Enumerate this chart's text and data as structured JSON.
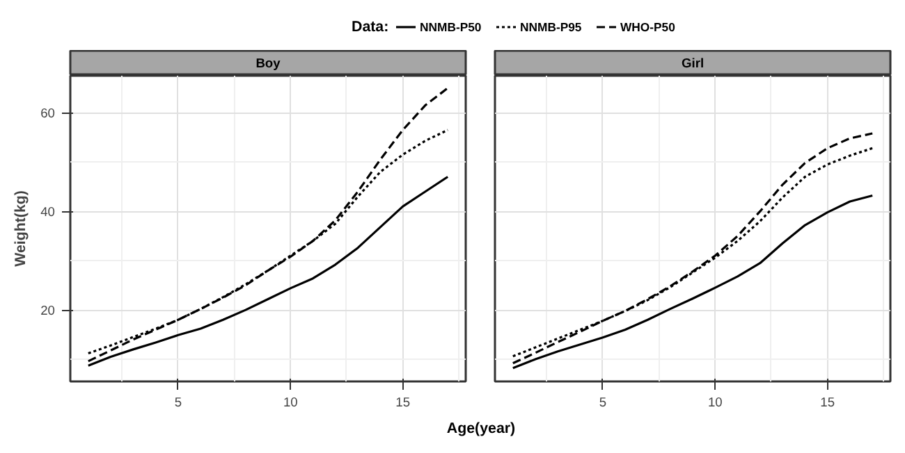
{
  "chart_data": [
    {
      "type": "line",
      "title": "Boy",
      "xlabel": "Age(year)",
      "ylabel": "Weight(kg)",
      "legend_title": "Data:",
      "legend": "top",
      "grid": true,
      "tick_labels": "xy",
      "x": [
        1,
        2,
        3,
        4,
        5,
        6,
        7,
        8,
        9,
        10,
        11,
        12,
        13,
        14,
        15,
        16,
        17
      ],
      "xlim": [
        0.2,
        17.8
      ],
      "ylim": [
        5.5,
        67.5
      ],
      "xticks": [
        5,
        10,
        15
      ],
      "yticks": [
        20,
        40,
        60
      ],
      "series": [
        {
          "name": "NNMB-P50",
          "color": "#000000",
          "line_style": "solid",
          "values": [
            8.7,
            10.5,
            12,
            13.4,
            14.9,
            16.2,
            18,
            20,
            22.2,
            24.4,
            26.4,
            29.2,
            32.6,
            36.8,
            41,
            44,
            47
          ]
        },
        {
          "name": "NNMB-P95",
          "color": "#000000",
          "line_style": "dotted",
          "values": [
            11.2,
            12.8,
            14.5,
            16.2,
            18,
            20.2,
            22.6,
            25.2,
            28,
            31,
            34,
            37.5,
            43,
            48,
            51.5,
            54.3,
            56.5
          ]
        },
        {
          "name": "WHO-P50",
          "color": "#000000",
          "line_style": "dashed",
          "values": [
            9.6,
            11.8,
            14,
            16,
            18,
            20.2,
            22.5,
            25,
            28,
            30.8,
            34,
            38.2,
            44,
            50.5,
            56.5,
            61.5,
            65
          ]
        }
      ]
    },
    {
      "type": "line",
      "title": "Girl",
      "grid": true,
      "tick_labels": "x",
      "x": [
        1,
        2,
        3,
        4,
        5,
        6,
        7,
        8,
        9,
        10,
        11,
        12,
        13,
        14,
        15,
        16,
        17
      ],
      "xlim": [
        0.2,
        17.8
      ],
      "ylim": [
        5.5,
        67.5
      ],
      "xticks": [
        5,
        10,
        15
      ],
      "yticks": [
        20,
        40,
        60
      ],
      "series": [
        {
          "color": "#000000",
          "line_style": "solid",
          "values": [
            8.2,
            10,
            11.6,
            13,
            14.4,
            16,
            18,
            20.2,
            22.3,
            24.5,
            26.8,
            29.5,
            33.5,
            37.2,
            39.8,
            42,
            43.2
          ]
        },
        {
          "color": "#000000",
          "line_style": "dotted",
          "values": [
            10.6,
            12.4,
            14.2,
            16,
            17.8,
            19.8,
            22,
            24.6,
            27.6,
            30.6,
            34,
            38,
            42.8,
            47,
            49.5,
            51.3,
            52.8
          ]
        },
        {
          "color": "#000000",
          "line_style": "dashed",
          "values": [
            9.2,
            11.3,
            13.5,
            15.6,
            17.8,
            19.8,
            22.2,
            24.8,
            27.8,
            31,
            35,
            40,
            45.4,
            49.8,
            52.8,
            54.8,
            55.8
          ]
        }
      ]
    }
  ]
}
